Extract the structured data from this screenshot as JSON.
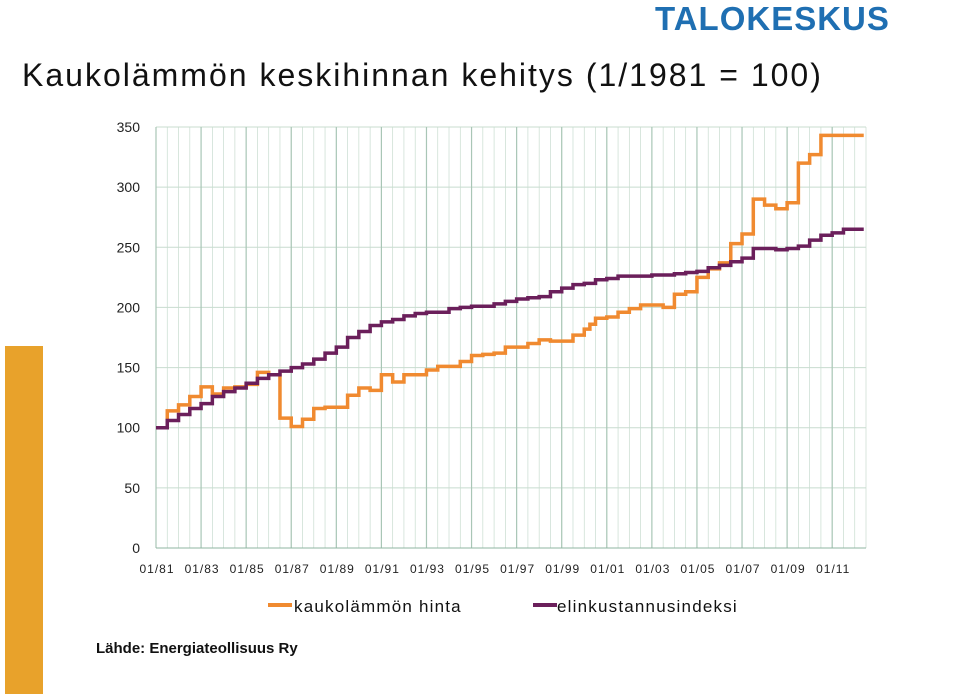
{
  "header": {
    "logo_text": "TALOKESKUS",
    "title": "Kaukolämmön keskihinnan kehitys (1/1981 = 100)"
  },
  "source": "Lähde: Energiateollisuus Ry",
  "colors": {
    "district_heating": "#f08a30",
    "cost_of_living": "#6b1f5b",
    "grid": "#c8dccf",
    "accent_bar": "#e8a22b",
    "logo": "#1f6fb2"
  },
  "chart_data": {
    "type": "line",
    "title": "Kaukolämmön keskihinnan kehitys (1/1981 = 100)",
    "xlabel": "",
    "ylabel": "",
    "xlim": [
      1981,
      2012.5
    ],
    "ylim": [
      0,
      350
    ],
    "yticks": [
      0,
      50,
      100,
      150,
      200,
      250,
      300,
      350
    ],
    "xticks": [
      "01/81",
      "01/83",
      "01/85",
      "01/87",
      "01/89",
      "01/91",
      "01/93",
      "01/95",
      "01/97",
      "01/99",
      "01/01",
      "01/03",
      "01/05",
      "01/07",
      "01/09",
      "01/11"
    ],
    "grid": true,
    "legend": "bottom",
    "series": [
      {
        "name": "kaukolämmön hinta",
        "x": [
          1981.0,
          1981.5,
          1982.0,
          1982.5,
          1983.0,
          1983.5,
          1984.0,
          1984.5,
          1985.0,
          1985.5,
          1986.0,
          1986.5,
          1987.0,
          1987.5,
          1988.0,
          1988.5,
          1989.0,
          1989.5,
          1990.0,
          1990.5,
          1991.0,
          1991.5,
          1992.0,
          1992.5,
          1993.0,
          1993.5,
          1994.0,
          1994.5,
          1995.0,
          1995.5,
          1996.0,
          1996.5,
          1997.0,
          1997.5,
          1998.0,
          1998.5,
          1999.0,
          1999.5,
          2000.0,
          2000.25,
          2000.5,
          2001.0,
          2001.5,
          2002.0,
          2002.5,
          2003.0,
          2003.5,
          2004.0,
          2004.5,
          2005.0,
          2005.5,
          2006.0,
          2006.5,
          2007.0,
          2007.5,
          2008.0,
          2008.5,
          2009.0,
          2009.5,
          2010.0,
          2010.5,
          2011.0,
          2011.5,
          2012.0
        ],
        "values": [
          100,
          114,
          119,
          126,
          134,
          128,
          133,
          134,
          136,
          146,
          144,
          108,
          101,
          107,
          116,
          117,
          117,
          127,
          133,
          131,
          144,
          138,
          144,
          144,
          148,
          151,
          151,
          155,
          160,
          161,
          162,
          167,
          167,
          170,
          173,
          172,
          172,
          177,
          182,
          186,
          191,
          192,
          196,
          199,
          202,
          202,
          200,
          211,
          213,
          225,
          232,
          237,
          253,
          261,
          290,
          285,
          282,
          287,
          320,
          327,
          343,
          343,
          343,
          343
        ]
      },
      {
        "name": "elinkustannusindeksi",
        "x": [
          1981.0,
          1981.5,
          1982.0,
          1982.5,
          1983.0,
          1983.5,
          1984.0,
          1984.5,
          1985.0,
          1985.5,
          1986.0,
          1986.5,
          1987.0,
          1987.5,
          1988.0,
          1988.5,
          1989.0,
          1989.5,
          1990.0,
          1990.5,
          1991.0,
          1991.5,
          1992.0,
          1992.5,
          1993.0,
          1993.5,
          1994.0,
          1994.5,
          1995.0,
          1995.5,
          1996.0,
          1996.5,
          1997.0,
          1997.5,
          1998.0,
          1998.5,
          1999.0,
          1999.5,
          2000.0,
          2000.5,
          2001.0,
          2001.5,
          2002.0,
          2002.5,
          2003.0,
          2003.5,
          2004.0,
          2004.5,
          2005.0,
          2005.5,
          2006.0,
          2006.5,
          2007.0,
          2007.5,
          2008.0,
          2008.5,
          2009.0,
          2009.5,
          2010.0,
          2010.5,
          2011.0,
          2011.5,
          2012.0
        ],
        "values": [
          100,
          106,
          111,
          116,
          120,
          126,
          130,
          133,
          137,
          141,
          144,
          147,
          150,
          153,
          157,
          162,
          167,
          175,
          180,
          185,
          188,
          190,
          193,
          195,
          196,
          196,
          199,
          200,
          201,
          201,
          203,
          205,
          207,
          208,
          209,
          213,
          216,
          219,
          220,
          223,
          224,
          226,
          226,
          226,
          227,
          227,
          228,
          229,
          230,
          233,
          235,
          238,
          241,
          249,
          249,
          248,
          249,
          251,
          256,
          260,
          262,
          265,
          265
        ]
      }
    ]
  }
}
